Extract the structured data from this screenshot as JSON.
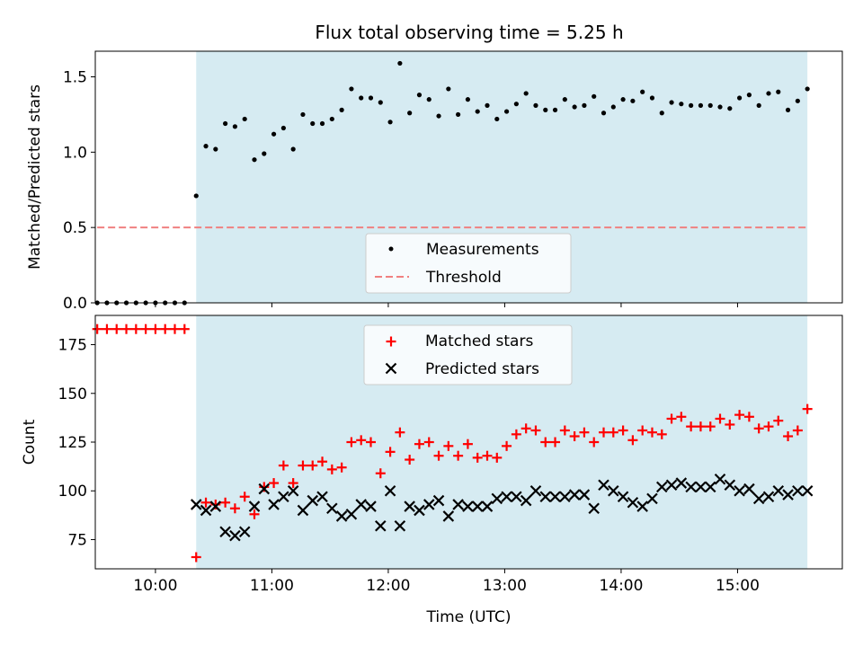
{
  "title": "Flux total observing time = 5.25 h",
  "colors": {
    "band": "#add8e6",
    "measurement": "#000000",
    "threshold": "#f08080",
    "matched": "#ff0000",
    "predicted": "#000000",
    "axis": "#000000"
  },
  "chart_data": [
    {
      "type": "scatter",
      "title": "Flux total observing time = 5.25 h",
      "xlabel": "",
      "ylabel": "Matched/Predicted stars",
      "xlim": [
        "09:29",
        "15:54"
      ],
      "ylim": [
        0,
        1.67
      ],
      "x_ticks": [
        "10:00",
        "11:00",
        "12:00",
        "13:00",
        "14:00",
        "15:00"
      ],
      "y_ticks": [
        "0.0",
        "0.5",
        "1.0",
        "1.5"
      ],
      "x_tick_labels_shown": false,
      "observing_band": {
        "start": "10:21",
        "end": "15:36"
      },
      "legend": {
        "placement": "lower center",
        "entries": [
          "Measurements",
          "Threshold"
        ]
      },
      "threshold": {
        "name": "Threshold",
        "value": 0.5,
        "x_start": "09:30",
        "x_end": "15:36",
        "style": "dashed"
      },
      "series": [
        {
          "name": "Measurements",
          "marker": "dot",
          "x": [
            "09:30",
            "09:35",
            "09:40",
            "09:45",
            "09:50",
            "09:55",
            "10:00",
            "10:05",
            "10:10",
            "10:15",
            "10:21",
            "10:26",
            "10:31",
            "10:36",
            "10:41",
            "10:46",
            "10:51",
            "10:56",
            "11:01",
            "11:06",
            "11:11",
            "11:16",
            "11:21",
            "11:26",
            "11:31",
            "11:36",
            "11:41",
            "11:46",
            "11:51",
            "11:56",
            "12:01",
            "12:06",
            "12:11",
            "12:16",
            "12:21",
            "12:26",
            "12:31",
            "12:36",
            "12:41",
            "12:46",
            "12:51",
            "12:56",
            "13:01",
            "13:06",
            "13:11",
            "13:16",
            "13:21",
            "13:26",
            "13:31",
            "13:36",
            "13:41",
            "13:46",
            "13:51",
            "13:56",
            "14:01",
            "14:06",
            "14:11",
            "14:16",
            "14:21",
            "14:26",
            "14:31",
            "14:36",
            "14:41",
            "14:46",
            "14:51",
            "14:56",
            "15:01",
            "15:06",
            "15:11",
            "15:16",
            "15:21",
            "15:26",
            "15:31",
            "15:36"
          ],
          "y": [
            0,
            0,
            0,
            0,
            0,
            0,
            0,
            0,
            0,
            0,
            0.71,
            1.04,
            1.02,
            1.19,
            1.17,
            1.22,
            0.95,
            0.99,
            1.12,
            1.16,
            1.02,
            1.25,
            1.19,
            1.19,
            1.22,
            1.28,
            1.42,
            1.36,
            1.36,
            1.33,
            1.2,
            1.59,
            1.26,
            1.38,
            1.35,
            1.24,
            1.42,
            1.25,
            1.35,
            1.27,
            1.31,
            1.22,
            1.27,
            1.32,
            1.39,
            1.31,
            1.28,
            1.28,
            1.35,
            1.3,
            1.31,
            1.37,
            1.26,
            1.3,
            1.35,
            1.34,
            1.4,
            1.36,
            1.26,
            1.33,
            1.32,
            1.31,
            1.31,
            1.31,
            1.3,
            1.29,
            1.36,
            1.38,
            1.31,
            1.39,
            1.4,
            1.28,
            1.34,
            1.42
          ]
        }
      ]
    },
    {
      "type": "scatter",
      "xlabel": "Time (UTC)",
      "ylabel": "Count",
      "xlim": [
        "09:29",
        "15:54"
      ],
      "ylim": [
        60,
        190
      ],
      "x_ticks": [
        "10:00",
        "11:00",
        "12:00",
        "13:00",
        "14:00",
        "15:00"
      ],
      "y_ticks": [
        "75",
        "100",
        "125",
        "150",
        "175"
      ],
      "observing_band": {
        "start": "10:21",
        "end": "15:36"
      },
      "legend": {
        "placement": "upper center",
        "entries": [
          "Matched stars",
          "Predicted stars"
        ]
      },
      "series": [
        {
          "name": "Matched stars",
          "marker": "plus",
          "x": [
            "09:30",
            "09:35",
            "09:40",
            "09:45",
            "09:50",
            "09:55",
            "10:00",
            "10:05",
            "10:10",
            "10:15",
            "10:21",
            "10:26",
            "10:31",
            "10:36",
            "10:41",
            "10:46",
            "10:51",
            "10:56",
            "11:01",
            "11:06",
            "11:11",
            "11:16",
            "11:21",
            "11:26",
            "11:31",
            "11:36",
            "11:41",
            "11:46",
            "11:51",
            "11:56",
            "12:01",
            "12:06",
            "12:11",
            "12:16",
            "12:21",
            "12:26",
            "12:31",
            "12:36",
            "12:41",
            "12:46",
            "12:51",
            "12:56",
            "13:01",
            "13:06",
            "13:11",
            "13:16",
            "13:21",
            "13:26",
            "13:31",
            "13:36",
            "13:41",
            "13:46",
            "13:51",
            "13:56",
            "14:01",
            "14:06",
            "14:11",
            "14:16",
            "14:21",
            "14:26",
            "14:31",
            "14:36",
            "14:41",
            "14:46",
            "14:51",
            "14:56",
            "15:01",
            "15:06",
            "15:11",
            "15:16",
            "15:21",
            "15:26",
            "15:31",
            "15:36"
          ],
          "y": [
            183,
            183,
            183,
            183,
            183,
            183,
            183,
            183,
            183,
            183,
            66,
            94,
            93,
            94,
            91,
            97,
            88,
            102,
            104,
            113,
            104,
            113,
            113,
            115,
            111,
            112,
            125,
            126,
            125,
            109,
            120,
            130,
            116,
            124,
            125,
            118,
            123,
            118,
            124,
            117,
            118,
            117,
            123,
            129,
            132,
            131,
            125,
            125,
            131,
            128,
            130,
            125,
            130,
            130,
            131,
            126,
            131,
            130,
            129,
            137,
            138,
            133,
            133,
            133,
            137,
            134,
            139,
            138,
            132,
            133,
            136,
            128,
            131,
            142
          ]
        },
        {
          "name": "Predicted stars",
          "marker": "x",
          "x": [
            "10:21",
            "10:26",
            "10:31",
            "10:36",
            "10:41",
            "10:46",
            "10:51",
            "10:56",
            "11:01",
            "11:06",
            "11:11",
            "11:16",
            "11:21",
            "11:26",
            "11:31",
            "11:36",
            "11:41",
            "11:46",
            "11:51",
            "11:56",
            "12:01",
            "12:06",
            "12:11",
            "12:16",
            "12:21",
            "12:26",
            "12:31",
            "12:36",
            "12:41",
            "12:46",
            "12:51",
            "12:56",
            "13:01",
            "13:06",
            "13:11",
            "13:16",
            "13:21",
            "13:26",
            "13:31",
            "13:36",
            "13:41",
            "13:46",
            "13:51",
            "13:56",
            "14:01",
            "14:06",
            "14:11",
            "14:16",
            "14:21",
            "14:26",
            "14:31",
            "14:36",
            "14:41",
            "14:46",
            "14:51",
            "14:56",
            "15:01",
            "15:06",
            "15:11",
            "15:16",
            "15:21",
            "15:26",
            "15:31",
            "15:36"
          ],
          "y": [
            93,
            90,
            92,
            79,
            77,
            79,
            92,
            101,
            93,
            97,
            100,
            90,
            95,
            97,
            91,
            87,
            88,
            93,
            92,
            82,
            100,
            82,
            92,
            90,
            93,
            95,
            87,
            93,
            92,
            92,
            92,
            96,
            97,
            97,
            95,
            100,
            97,
            97,
            97,
            98,
            98,
            91,
            103,
            100,
            97,
            94,
            92,
            96,
            102,
            103,
            104,
            102,
            102,
            102,
            106,
            103,
            100,
            101,
            96,
            97,
            100,
            98,
            100,
            100
          ]
        }
      ]
    }
  ]
}
